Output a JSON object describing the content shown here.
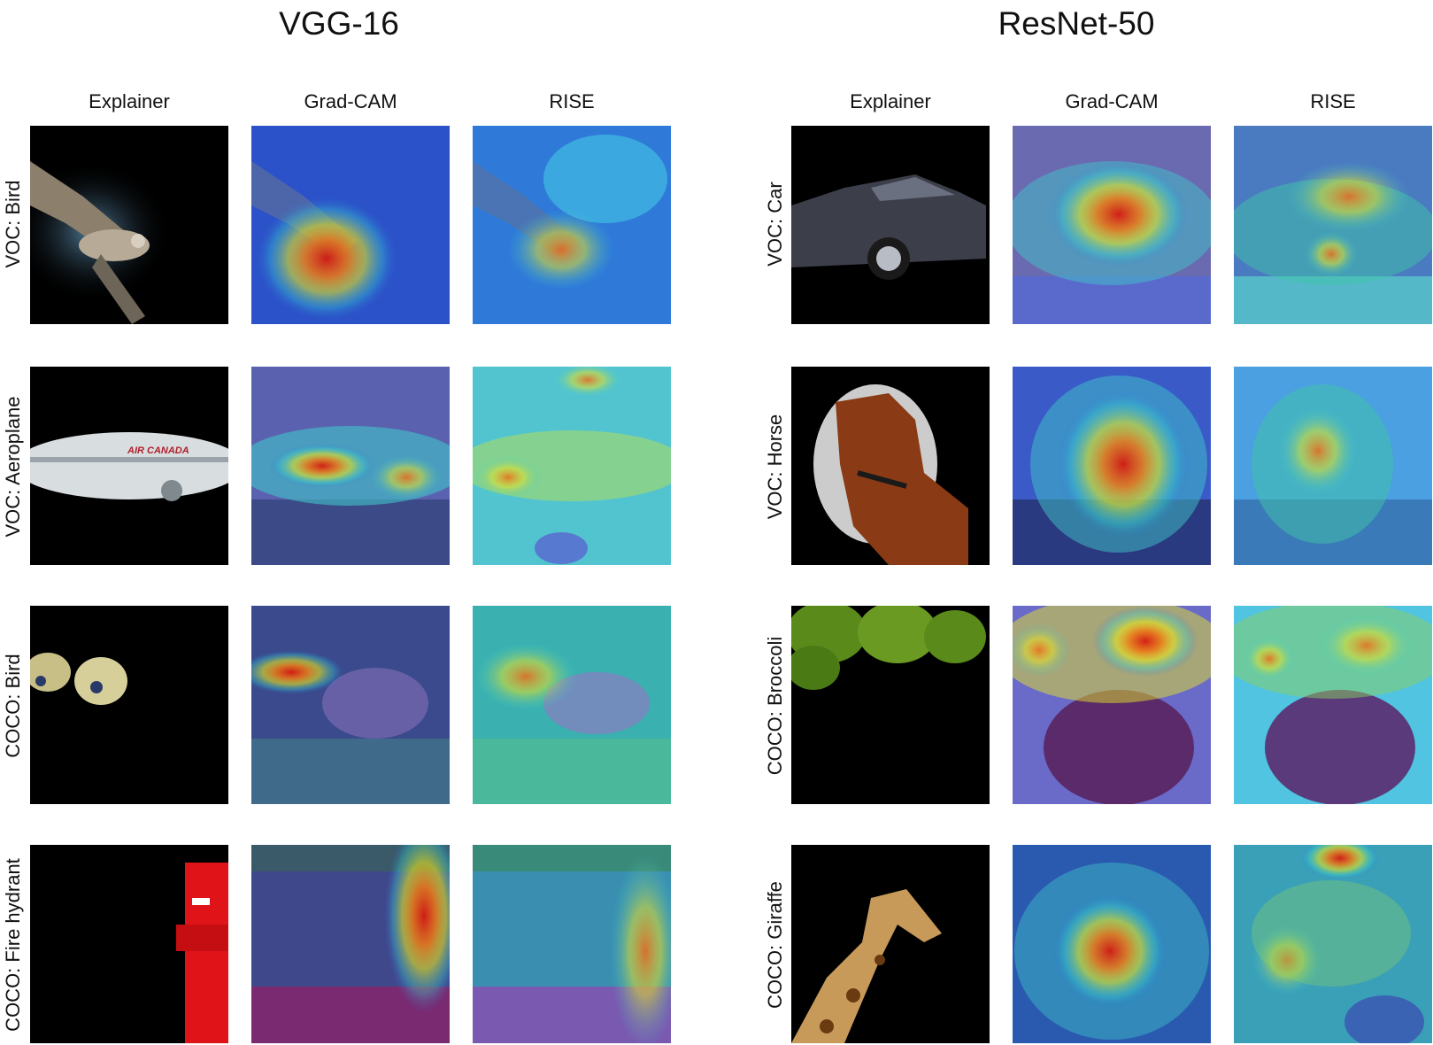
{
  "panels": [
    {
      "title": "VGG-16",
      "columns": [
        "Explainer",
        "Grad-CAM",
        "RISE"
      ],
      "rows": [
        "VOC: Bird",
        "VOC: Aeroplane",
        "COCO: Bird",
        "COCO: Fire hydrant"
      ]
    },
    {
      "title": "ResNet-50",
      "columns": [
        "Explainer",
        "Grad-CAM",
        "RISE"
      ],
      "rows": [
        "VOC: Car",
        "VOC: Horse",
        "COCO: Broccoli",
        "COCO: Giraffe"
      ]
    }
  ],
  "thumbnails": {
    "airplane_livery": "AIR CANADA"
  }
}
